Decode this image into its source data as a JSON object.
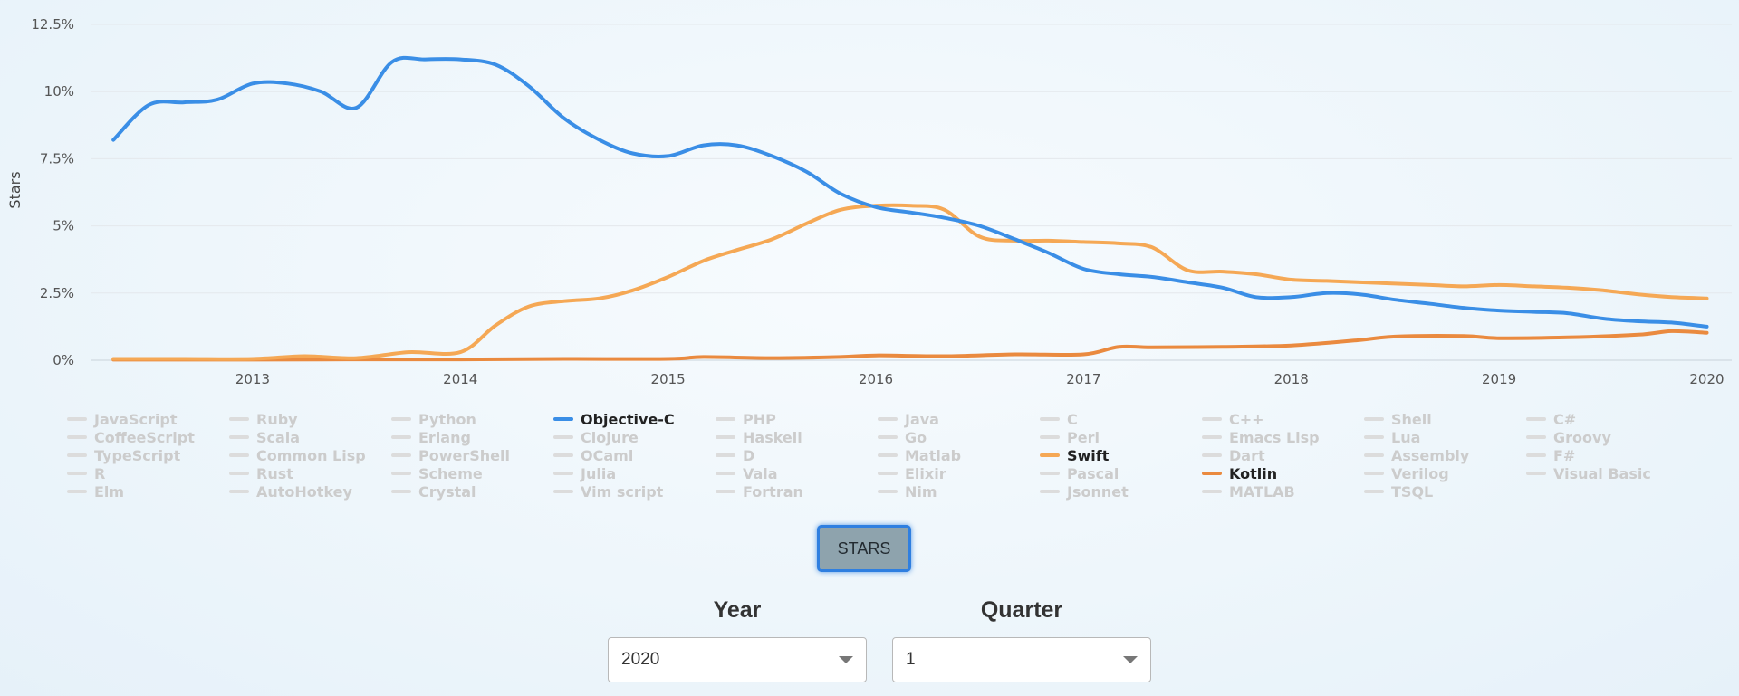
{
  "chart_data": {
    "type": "line",
    "title": "",
    "xlabel": "",
    "ylabel": "Stars",
    "x_ticks": [
      "2013",
      "2014",
      "2015",
      "2016",
      "2017",
      "2018",
      "2019",
      "2020"
    ],
    "y_ticks": [
      "0%",
      "2.5%",
      "5%",
      "7.5%",
      "10%",
      "12.5%"
    ],
    "ylim": [
      0,
      12.5
    ],
    "xlim": [
      2012.22,
      2020.12
    ],
    "grid": "horizontal",
    "series": [
      {
        "name": "Objective-C",
        "color": "#3a8ee6",
        "x": [
          2012.33,
          2012.5,
          2012.67,
          2012.83,
          2013.0,
          2013.17,
          2013.33,
          2013.5,
          2013.67,
          2013.83,
          2014.0,
          2014.17,
          2014.33,
          2014.5,
          2014.67,
          2014.83,
          2015.0,
          2015.17,
          2015.33,
          2015.5,
          2015.67,
          2015.83,
          2016.0,
          2016.17,
          2016.33,
          2016.5,
          2016.67,
          2016.83,
          2017.0,
          2017.17,
          2017.33,
          2017.5,
          2017.67,
          2017.83,
          2018.0,
          2018.17,
          2018.33,
          2018.5,
          2018.67,
          2018.83,
          2019.0,
          2019.17,
          2019.33,
          2019.5,
          2019.67,
          2019.83,
          2020.0
        ],
        "y": [
          8.2,
          9.5,
          9.6,
          9.7,
          10.3,
          10.3,
          10.0,
          9.4,
          11.1,
          11.2,
          11.2,
          11.0,
          10.2,
          9.0,
          8.2,
          7.7,
          7.6,
          8.0,
          8.0,
          7.6,
          7.0,
          6.2,
          5.7,
          5.5,
          5.3,
          5.0,
          4.5,
          4.0,
          3.4,
          3.2,
          3.1,
          2.9,
          2.7,
          2.35,
          2.35,
          2.5,
          2.45,
          2.25,
          2.1,
          1.95,
          1.85,
          1.8,
          1.75,
          1.55,
          1.45,
          1.4,
          1.25
        ]
      },
      {
        "name": "Swift",
        "color": "#f5a855",
        "x": [
          2012.33,
          2012.67,
          2013.0,
          2013.25,
          2013.5,
          2013.75,
          2014.0,
          2014.17,
          2014.33,
          2014.5,
          2014.67,
          2014.83,
          2015.0,
          2015.17,
          2015.33,
          2015.5,
          2015.67,
          2015.83,
          2016.0,
          2016.17,
          2016.33,
          2016.5,
          2016.67,
          2016.83,
          2017.0,
          2017.17,
          2017.33,
          2017.5,
          2017.67,
          2017.83,
          2018.0,
          2018.17,
          2018.33,
          2018.5,
          2018.67,
          2018.83,
          2019.0,
          2019.17,
          2019.33,
          2019.5,
          2019.67,
          2019.83,
          2020.0
        ],
        "y": [
          0.05,
          0.05,
          0.05,
          0.15,
          0.08,
          0.3,
          0.3,
          1.3,
          2.0,
          2.2,
          2.3,
          2.6,
          3.1,
          3.7,
          4.1,
          4.5,
          5.1,
          5.6,
          5.75,
          5.75,
          5.6,
          4.6,
          4.45,
          4.45,
          4.4,
          4.35,
          4.2,
          3.35,
          3.3,
          3.2,
          3.0,
          2.95,
          2.9,
          2.85,
          2.8,
          2.75,
          2.8,
          2.75,
          2.7,
          2.6,
          2.45,
          2.35,
          2.3
        ]
      },
      {
        "name": "Kotlin",
        "color": "#ea8a3f",
        "x": [
          2012.33,
          2012.67,
          2013.0,
          2013.5,
          2014.0,
          2014.5,
          2015.0,
          2015.17,
          2015.5,
          2015.83,
          2016.0,
          2016.33,
          2016.67,
          2017.0,
          2017.17,
          2017.33,
          2017.67,
          2018.0,
          2018.33,
          2018.5,
          2018.83,
          2019.0,
          2019.33,
          2019.67,
          2019.83,
          2020.0
        ],
        "y": [
          0.02,
          0.02,
          0.02,
          0.03,
          0.03,
          0.05,
          0.05,
          0.12,
          0.08,
          0.12,
          0.18,
          0.15,
          0.22,
          0.22,
          0.5,
          0.48,
          0.5,
          0.55,
          0.75,
          0.88,
          0.9,
          0.82,
          0.85,
          0.95,
          1.08,
          1.02
        ]
      }
    ]
  },
  "legend": {
    "columns": 10,
    "items": [
      {
        "label": "JavaScript",
        "active": false
      },
      {
        "label": "Ruby",
        "active": false
      },
      {
        "label": "Python",
        "active": false
      },
      {
        "label": "Objective-C",
        "active": true,
        "color": "#3a8ee6"
      },
      {
        "label": "PHP",
        "active": false
      },
      {
        "label": "Java",
        "active": false
      },
      {
        "label": "C",
        "active": false
      },
      {
        "label": "C++",
        "active": false
      },
      {
        "label": "Shell",
        "active": false
      },
      {
        "label": "C#",
        "active": false
      },
      {
        "label": "CoffeeScript",
        "active": false
      },
      {
        "label": "Scala",
        "active": false
      },
      {
        "label": "Erlang",
        "active": false
      },
      {
        "label": "Clojure",
        "active": false
      },
      {
        "label": "Haskell",
        "active": false
      },
      {
        "label": "Go",
        "active": false
      },
      {
        "label": "Perl",
        "active": false
      },
      {
        "label": "Emacs Lisp",
        "active": false
      },
      {
        "label": "Lua",
        "active": false
      },
      {
        "label": "Groovy",
        "active": false
      },
      {
        "label": "TypeScript",
        "active": false
      },
      {
        "label": "Common Lisp",
        "active": false
      },
      {
        "label": "PowerShell",
        "active": false
      },
      {
        "label": "OCaml",
        "active": false
      },
      {
        "label": "D",
        "active": false
      },
      {
        "label": "Matlab",
        "active": false
      },
      {
        "label": "Swift",
        "active": true,
        "color": "#f5a855"
      },
      {
        "label": "Dart",
        "active": false
      },
      {
        "label": "Assembly",
        "active": false
      },
      {
        "label": "F#",
        "active": false
      },
      {
        "label": "R",
        "active": false
      },
      {
        "label": "Rust",
        "active": false
      },
      {
        "label": "Scheme",
        "active": false
      },
      {
        "label": "Julia",
        "active": false
      },
      {
        "label": "Vala",
        "active": false
      },
      {
        "label": "Elixir",
        "active": false
      },
      {
        "label": "Pascal",
        "active": false
      },
      {
        "label": "Kotlin",
        "active": true,
        "color": "#ea8a3f"
      },
      {
        "label": "Verilog",
        "active": false
      },
      {
        "label": "Visual Basic",
        "active": false
      },
      {
        "label": "Elm",
        "active": false
      },
      {
        "label": "AutoHotkey",
        "active": false
      },
      {
        "label": "Crystal",
        "active": false
      },
      {
        "label": "Vim script",
        "active": false
      },
      {
        "label": "Fortran",
        "active": false
      },
      {
        "label": "Nim",
        "active": false
      },
      {
        "label": "Jsonnet",
        "active": false
      },
      {
        "label": "MATLAB",
        "active": false
      },
      {
        "label": "TSQL",
        "active": false
      }
    ]
  },
  "controls": {
    "stars_button_label": "STARS",
    "year_title": "Year",
    "year_value": "2020",
    "quarter_title": "Quarter",
    "quarter_value": "1"
  }
}
